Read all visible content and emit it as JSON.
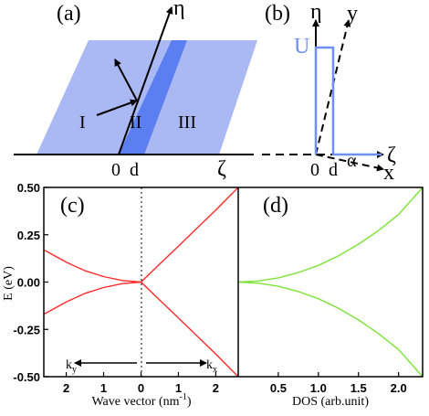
{
  "figure": {
    "panel_a": {
      "label": "(a)",
      "region_labels": [
        "I",
        "II",
        "III"
      ],
      "axis_eta": "η",
      "axis_zeta": "ζ",
      "tick_0": "0",
      "tick_d": "d",
      "colors": {
        "region": "#aab8f4",
        "barrier": "#5b7ff0",
        "line": "#000000"
      }
    },
    "panel_b": {
      "label": "(b)",
      "axis_eta": "η",
      "axis_y": "y",
      "axis_zeta": "ζ",
      "axis_x": "x",
      "potential_label": "U",
      "angle_label": "α",
      "tick_0": "0",
      "tick_d": "d",
      "colors": {
        "potential": "#6f8ff5"
      }
    },
    "panel_c": {
      "label": "(c)"
    },
    "panel_d": {
      "label": "(d)"
    }
  },
  "chart_data": [
    {
      "type": "line",
      "panel": "(c)",
      "xlabel": "Wave vector (nm",
      "xlabel_sup": "-1",
      "xlabel_end": ")",
      "ylabel": "E (eV)",
      "xlim": [
        -2.6,
        2.6
      ],
      "ylim": [
        -0.5,
        0.5
      ],
      "x_ticks": [
        -2,
        -1,
        0,
        1,
        2
      ],
      "x_tick_labels": [
        "2",
        "1",
        "0",
        "1",
        "2"
      ],
      "y_ticks": [
        -0.5,
        -0.25,
        0,
        0.25,
        0.5
      ],
      "y_tick_labels": [
        "-0.50",
        "-0.25",
        "0.00",
        "0.25",
        "0.50"
      ],
      "arrow_left_label": "k",
      "arrow_left_sub": "y",
      "arrow_right_label": "k",
      "arrow_right_sub": "x",
      "color": "#ff2a2a",
      "series": [
        {
          "x": [
            -2.6,
            -2.0,
            -1.5,
            -1.0,
            -0.5,
            0.0,
            0.5,
            1.0,
            1.5,
            2.0,
            2.6
          ],
          "y": [
            0.17,
            0.105,
            0.06,
            0.029,
            0.008,
            0.0,
            0.095,
            0.19,
            0.285,
            0.38,
            0.5
          ]
        },
        {
          "x": [
            -2.6,
            -2.0,
            -1.5,
            -1.0,
            -0.5,
            0.0,
            0.5,
            1.0,
            1.5,
            2.0,
            2.6
          ],
          "y": [
            -0.17,
            -0.105,
            -0.06,
            -0.029,
            -0.008,
            0.0,
            -0.095,
            -0.19,
            -0.285,
            -0.38,
            -0.5
          ]
        }
      ]
    },
    {
      "type": "line",
      "panel": "(d)",
      "xlabel": "DOS (arb.unit)",
      "xlim": [
        0,
        2.3
      ],
      "ylim": [
        -0.5,
        0.5
      ],
      "x_ticks": [
        0.5,
        1.0,
        1.5,
        2.0
      ],
      "x_tick_labels": [
        "0.5",
        "1.0",
        "1.5",
        "2.0"
      ],
      "color": "#7de33a",
      "series": [
        {
          "x": [
            0.0,
            0.25,
            0.5,
            0.75,
            1.0,
            1.25,
            1.5,
            1.75,
            2.0,
            2.3
          ],
          "y": [
            0.0,
            0.006,
            0.022,
            0.05,
            0.088,
            0.138,
            0.2,
            0.272,
            0.357,
            0.5
          ]
        },
        {
          "x": [
            0.0,
            0.25,
            0.5,
            0.75,
            1.0,
            1.25,
            1.5,
            1.75,
            2.0,
            2.3
          ],
          "y": [
            0.0,
            -0.006,
            -0.022,
            -0.05,
            -0.088,
            -0.138,
            -0.2,
            -0.272,
            -0.357,
            -0.5
          ]
        }
      ]
    }
  ]
}
